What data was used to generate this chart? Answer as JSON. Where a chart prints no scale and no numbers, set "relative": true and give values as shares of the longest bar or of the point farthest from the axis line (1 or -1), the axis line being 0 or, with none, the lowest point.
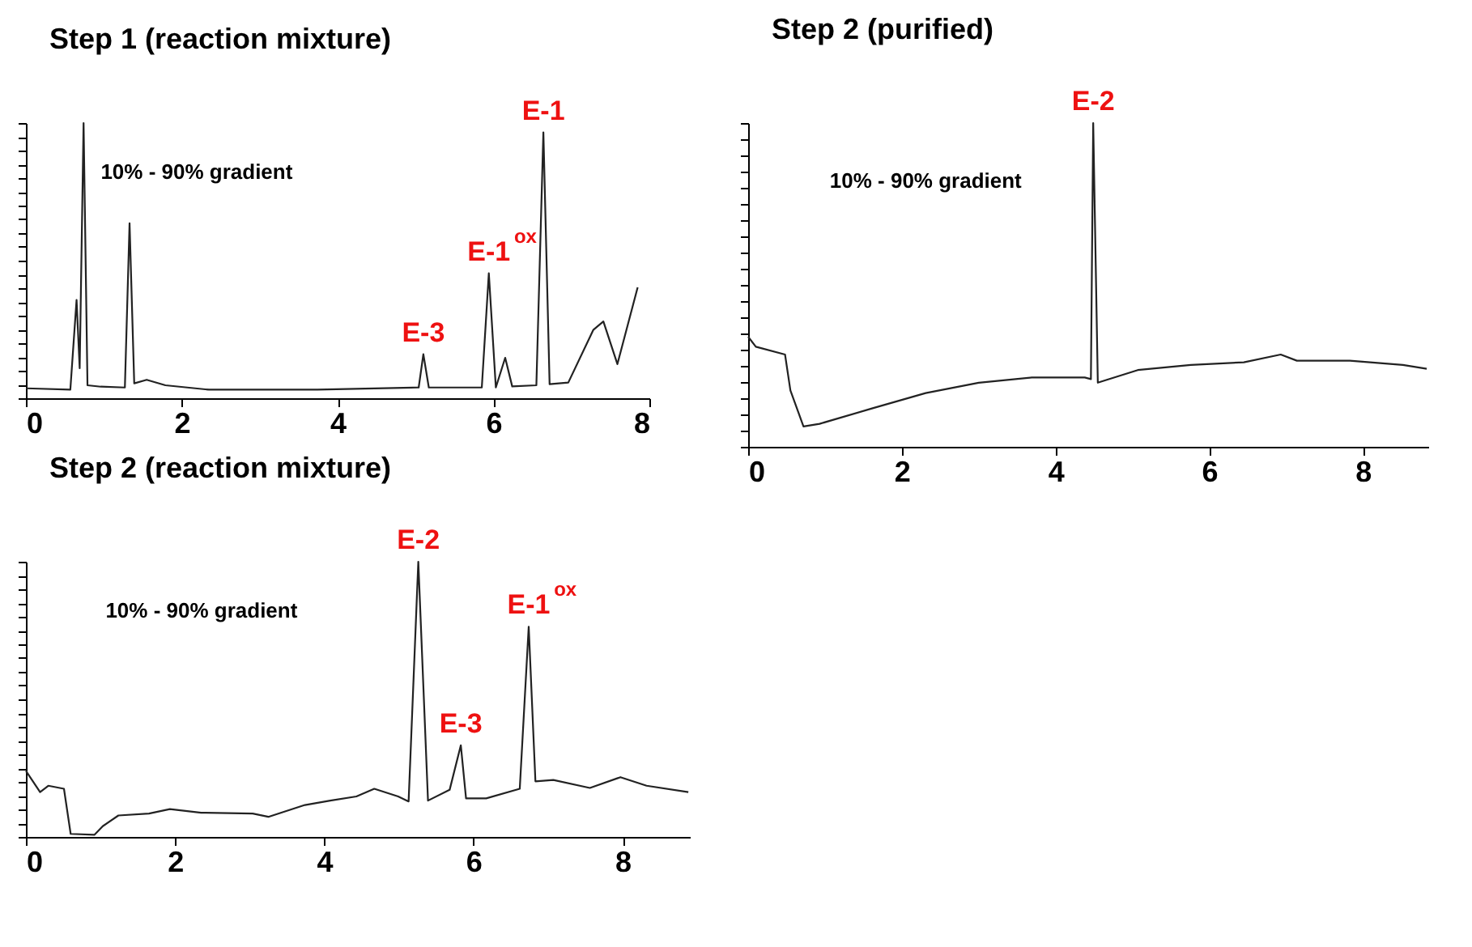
{
  "chart_data": [
    {
      "type": "line",
      "title": "Step 1 (reaction mixture)",
      "relative": true,
      "color": "#222222",
      "xlim": [
        0,
        8
      ],
      "xticks": [
        0,
        2,
        4,
        6,
        8
      ],
      "tick_labels": "x",
      "x": [
        0,
        0.57,
        0.65,
        0.69,
        0.74,
        0.79,
        0.96,
        1.27,
        1.33,
        1.39,
        1.55,
        1.79,
        2.35,
        3.74,
        5.04,
        5.1,
        5.17,
        5.85,
        5.94,
        6.03,
        6.15,
        6.24,
        6.55,
        6.64,
        6.72,
        6.96,
        7.28,
        7.41,
        7.59,
        7.85
      ],
      "values": [
        0.036,
        0.031,
        0.357,
        0.109,
        1.0,
        0.047,
        0.042,
        0.039,
        0.636,
        0.054,
        0.067,
        0.047,
        0.031,
        0.031,
        0.039,
        0.16,
        0.039,
        0.039,
        0.454,
        0.039,
        0.147,
        0.043,
        0.047,
        0.966,
        0.051,
        0.057,
        0.248,
        0.279,
        0.124,
        0.403
      ],
      "annotations": [
        "10% - 90% gradient",
        {
          "text": "E-3",
          "x": 5.1,
          "y": 0.16
        },
        {
          "text": "E-1$^{ox}$",
          "x": 5.94,
          "y": 0.454
        },
        {
          "text": "E-1",
          "x": 6.64,
          "y": 0.966
        }
      ]
    },
    {
      "type": "line",
      "title": "Step 2 (reaction mixture)",
      "relative": true,
      "color": "#222222",
      "xlim": [
        0,
        8.9
      ],
      "xticks": [
        0,
        2,
        4,
        6,
        8
      ],
      "tick_labels": "x",
      "x": [
        0,
        0.19,
        0.3,
        0.51,
        0.6,
        0.92,
        1.03,
        1.24,
        1.65,
        1.93,
        2.35,
        3.04,
        3.25,
        3.74,
        4.08,
        4.43,
        4.67,
        4.99,
        5.13,
        5.26,
        5.39,
        5.68,
        5.83,
        5.9,
        6.17,
        6.62,
        6.74,
        6.83,
        7.07,
        7.56,
        7.97,
        8.32,
        8.88
      ],
      "values": [
        0.24,
        0.163,
        0.186,
        0.175,
        0.011,
        0.008,
        0.039,
        0.078,
        0.085,
        0.101,
        0.088,
        0.085,
        0.073,
        0.116,
        0.132,
        0.147,
        0.175,
        0.147,
        0.129,
        1.0,
        0.132,
        0.171,
        0.333,
        0.14,
        0.14,
        0.175,
        0.764,
        0.202,
        0.207,
        0.178,
        0.217,
        0.186,
        0.163
      ],
      "annotations": [
        "10% - 90% gradient",
        {
          "text": "E-2",
          "x": 5.26,
          "y": 1.0
        },
        {
          "text": "E-3",
          "x": 5.83,
          "y": 0.333
        },
        {
          "text": "E-1$^{ox}$",
          "x": 6.74,
          "y": 0.764
        }
      ]
    },
    {
      "type": "line",
      "title": "Step 2 (purified)",
      "relative": true,
      "color": "#222222",
      "xlim": [
        0,
        8.85
      ],
      "xticks": [
        0,
        2,
        4,
        6,
        8
      ],
      "tick_labels": "x",
      "x": [
        0,
        0.1,
        0.48,
        0.55,
        0.72,
        0.93,
        1.62,
        2.31,
        3.0,
        3.69,
        4.38,
        4.46,
        4.49,
        4.55,
        5.07,
        5.76,
        6.45,
        6.93,
        7.14,
        7.83,
        8.52,
        8.83
      ],
      "values": [
        0.34,
        0.309,
        0.285,
        0.174,
        0.063,
        0.071,
        0.119,
        0.166,
        0.198,
        0.214,
        0.214,
        0.209,
        1.0,
        0.198,
        0.237,
        0.253,
        0.261,
        0.285,
        0.266,
        0.266,
        0.253,
        0.241
      ],
      "annotations": [
        "10% - 90% gradient",
        {
          "text": "E-2",
          "x": 4.49,
          "y": 1.0
        }
      ]
    }
  ]
}
